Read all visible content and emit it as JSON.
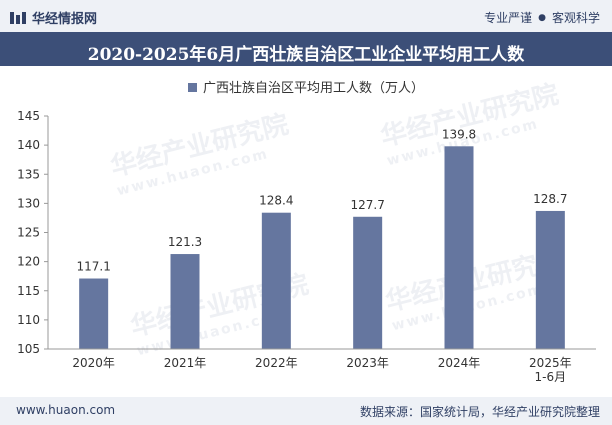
{
  "header": {
    "logo_text": "华经情报网",
    "tag1": "专业严谨",
    "tag2": "客观科学"
  },
  "watermark": {
    "text": "华经产业研究院",
    "url": "www.huaon.com"
  },
  "colors": {
    "bar": "#65769f",
    "title_bg": "#3c4f78",
    "header_bg": "#eef1f6"
  },
  "chart_data": {
    "type": "bar",
    "title": "2020-2025年6月广西壮族自治区工业企业平均用工人数",
    "legend": "广西壮族自治区平均用工人数（万人）",
    "categories": [
      "2020年",
      "2021年",
      "2022年",
      "2023年",
      "2024年",
      "2025年\n1-6月"
    ],
    "values": [
      117.1,
      121.3,
      128.4,
      127.7,
      139.8,
      128.7
    ],
    "value_labels": [
      "117.1",
      "121.3",
      "128.4",
      "127.7",
      "139.8",
      "128.7"
    ],
    "ylim": [
      105,
      145
    ],
    "yticks": [
      105,
      110,
      115,
      120,
      125,
      130,
      135,
      140,
      145
    ],
    "xlabel": "",
    "ylabel": ""
  },
  "footer": {
    "website": "www.huaon.com",
    "source": "数据来源：国家统计局，华经产业研究院整理"
  }
}
